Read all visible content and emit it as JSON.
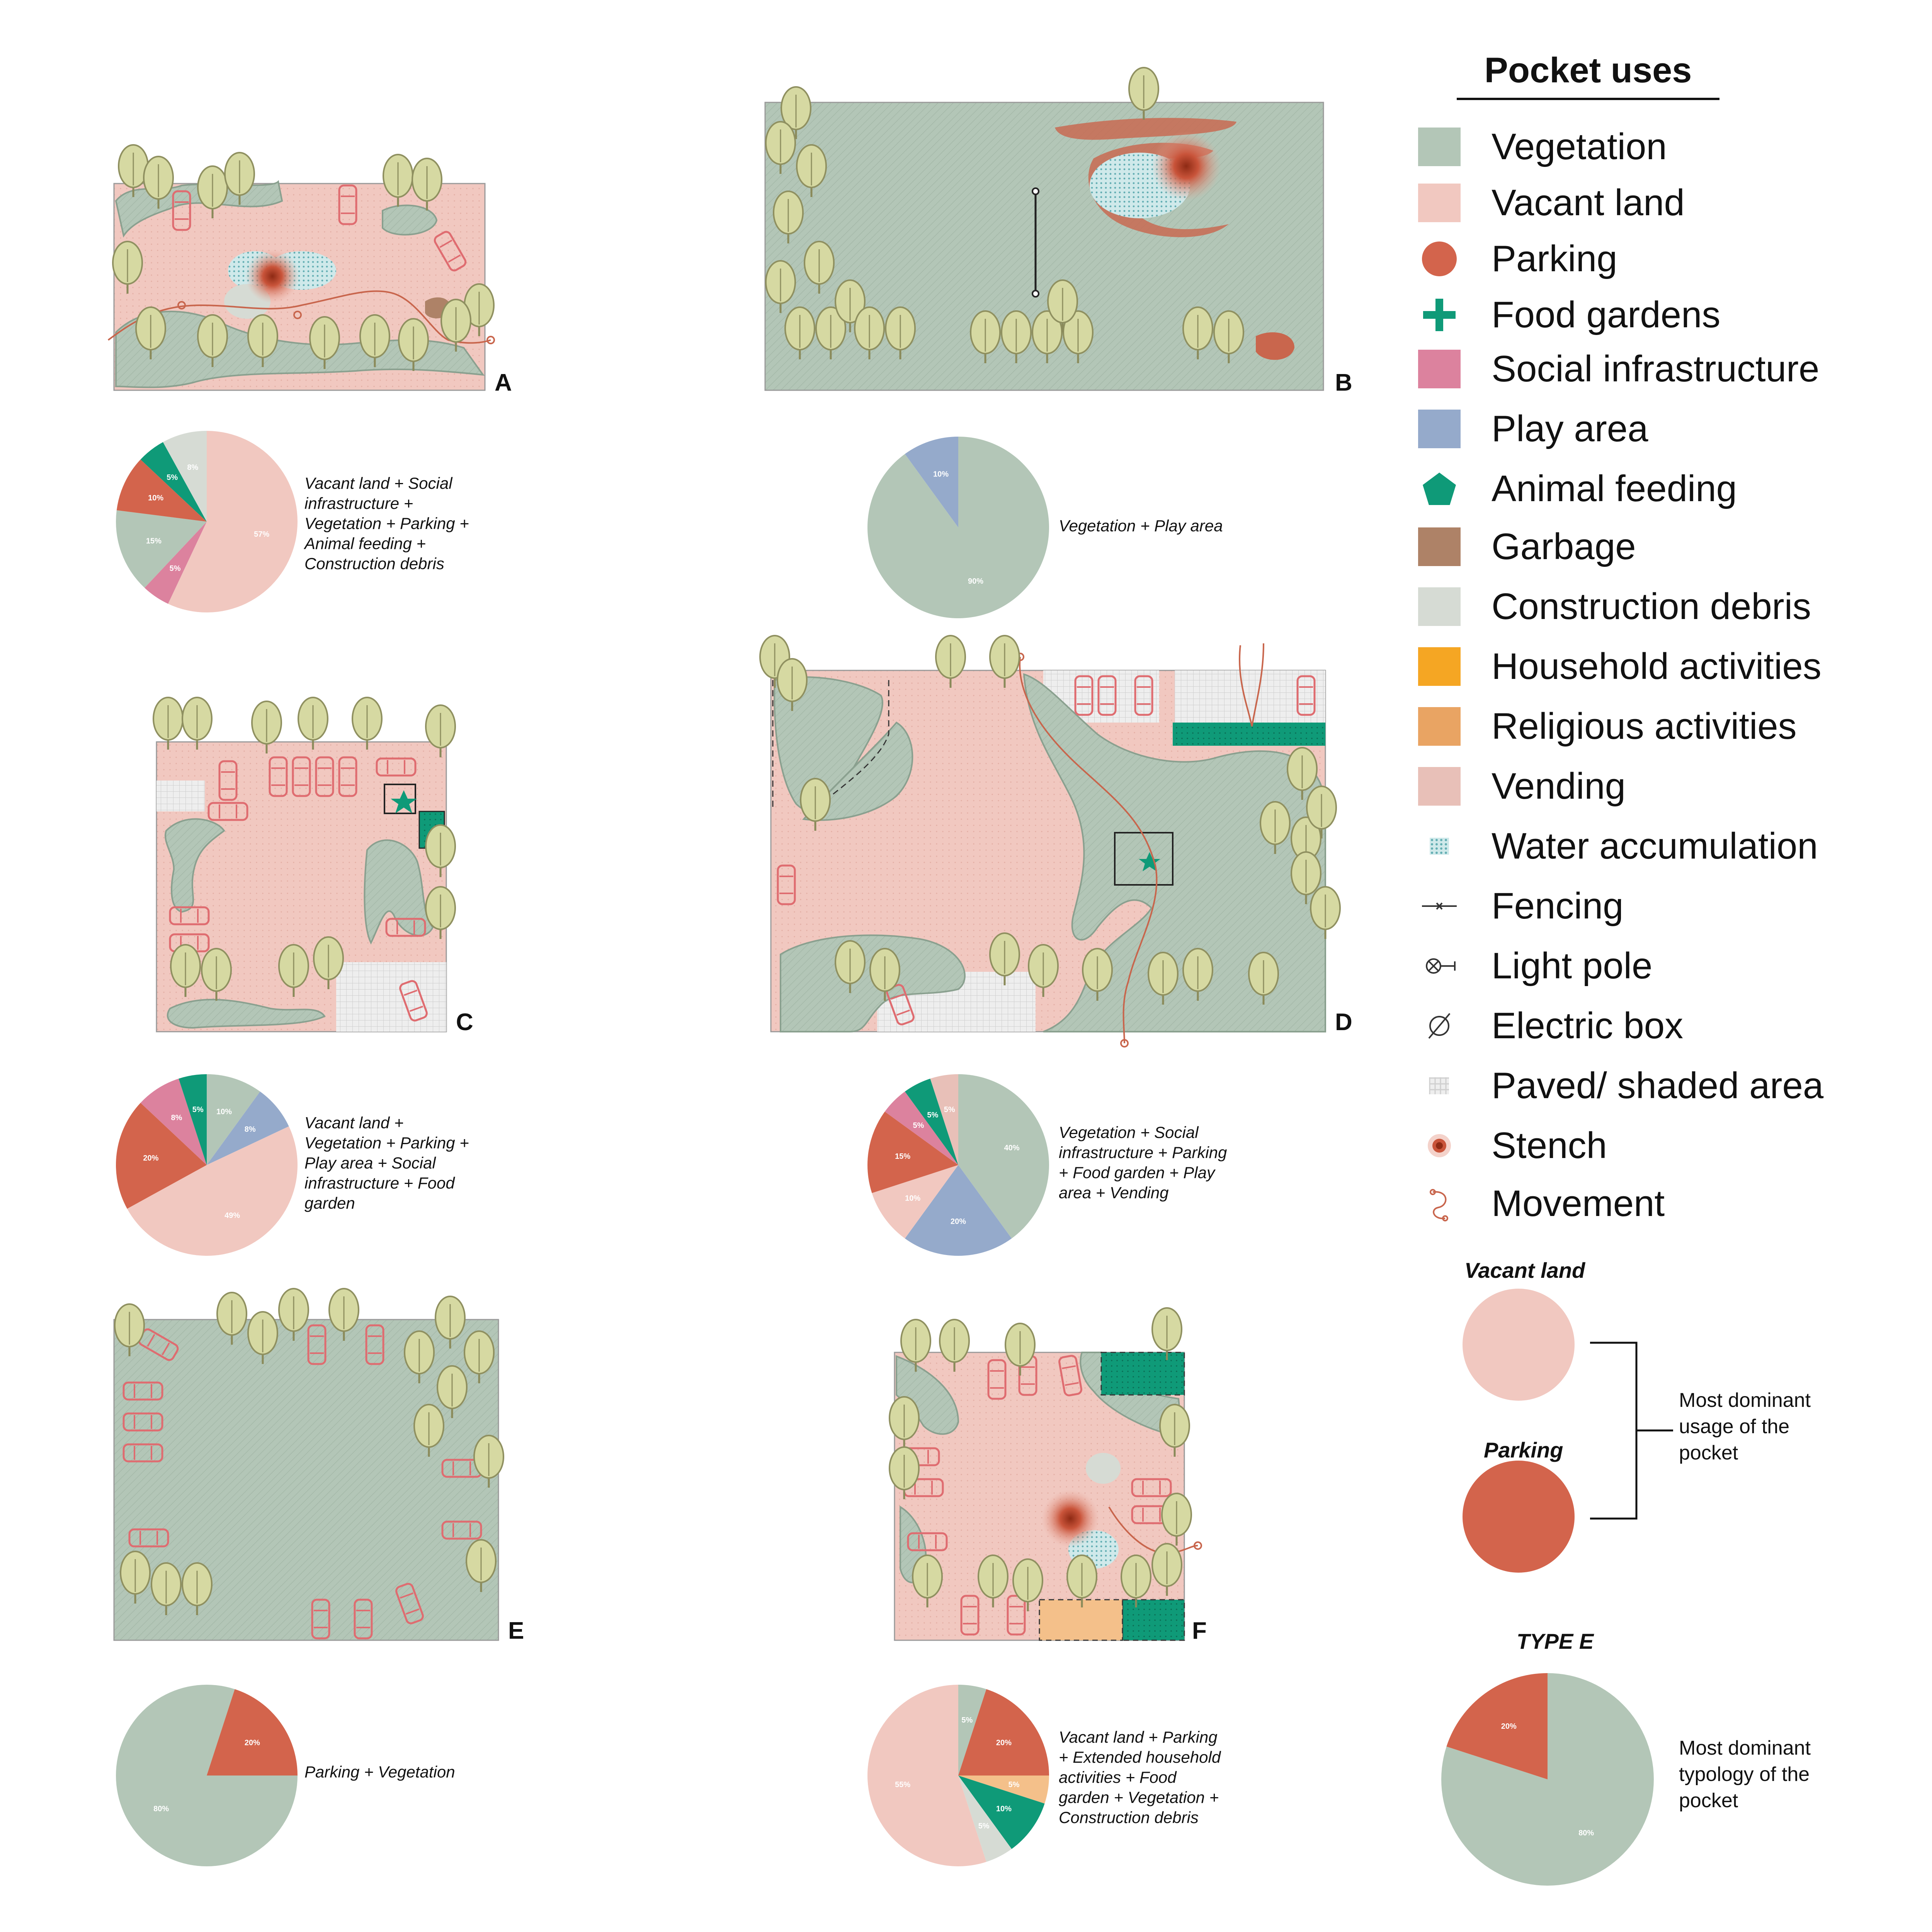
{
  "legend": {
    "title": "Pocket uses",
    "items": [
      {
        "label": "Vegetation",
        "icon": "vegetation-swatch",
        "color": "#b3c6b7"
      },
      {
        "label": "Vacant land",
        "icon": "vacant-land-swatch",
        "color": "#f1c8c0"
      },
      {
        "label": "Parking",
        "icon": "parking-dot",
        "color": "#d3644c"
      },
      {
        "label": "Food gardens",
        "icon": "plus-icon",
        "color": "#0f9a78"
      },
      {
        "label": "Social infrastructure",
        "icon": "social-infrastructure-swatch",
        "color": "#dc829e"
      },
      {
        "label": "Play area",
        "icon": "play-area-swatch",
        "color": "#95aacb"
      },
      {
        "label": "Animal feeding",
        "icon": "pentagon-icon",
        "color": "#0f9a78"
      },
      {
        "label": "Garbage",
        "icon": "garbage-swatch",
        "color": "#ae8267"
      },
      {
        "label": "Construction debris",
        "icon": "construction-debris-swatch",
        "color": "#d6dbd4"
      },
      {
        "label": "Household activities",
        "icon": "household-activities-swatch",
        "color": "#f5a623"
      },
      {
        "label": "Religious activities",
        "icon": "religious-activities-swatch",
        "color": "#e9a463"
      },
      {
        "label": "Vending",
        "icon": "vending-swatch",
        "color": "#e8c0b8"
      },
      {
        "label": "Water accumulation",
        "icon": "water-dots-icon",
        "color": "#8fcfd2"
      },
      {
        "label": "Fencing",
        "icon": "fence-icon",
        "color": "#333333"
      },
      {
        "label": "Light pole",
        "icon": "light-pole-icon",
        "color": "#333333"
      },
      {
        "label": "Electric box",
        "icon": "electric-box-icon",
        "color": "#333333"
      },
      {
        "label": "Paved/ shaded area",
        "icon": "paved-grid-icon",
        "color": "#dedede"
      },
      {
        "label": "Stench",
        "icon": "stench-icon",
        "color": "#b04a30"
      },
      {
        "label": "Movement",
        "icon": "movement-icon",
        "color": "#c8654c"
      }
    ],
    "dominant": {
      "vacant_label": "Vacant land",
      "parking_label": "Parking",
      "note": [
        "Most dominant",
        "usage of the",
        "pocket"
      ],
      "vacant_color": "#f1c8c0",
      "parking_color": "#d3644c"
    },
    "type_key": {
      "label": "TYPE E",
      "note": [
        "Most dominant",
        "typology of the",
        "pocket"
      ]
    }
  },
  "panels": [
    {
      "letter": "A"
    },
    {
      "letter": "B"
    },
    {
      "letter": "C"
    },
    {
      "letter": "D"
    },
    {
      "letter": "E"
    },
    {
      "letter": "F"
    }
  ],
  "chart_data": [
    {
      "type": "pie",
      "panel": "A",
      "caption": [
        "Vacant land + Social",
        "infrastructure +",
        "Vegetation + Parking +",
        "Animal feeding +",
        "Construction debris"
      ],
      "slices": [
        {
          "category": "Vacant land",
          "value": 57,
          "label": "57%",
          "color": "#f1c8c0"
        },
        {
          "category": "Social infrastructure",
          "value": 5,
          "label": "5%",
          "color": "#dc829e"
        },
        {
          "category": "Vegetation",
          "value": 15,
          "label": "15%",
          "color": "#b3c6b7"
        },
        {
          "category": "Parking",
          "value": 10,
          "label": "10%",
          "color": "#d3644c"
        },
        {
          "category": "Animal feeding",
          "value": 5,
          "label": "5%",
          "color": "#0f9a78"
        },
        {
          "category": "Construction debris",
          "value": 8,
          "label": "8%",
          "color": "#d6dbd4"
        }
      ]
    },
    {
      "type": "pie",
      "panel": "B",
      "caption": [
        "Vegetation + Play area"
      ],
      "slices": [
        {
          "category": "Vegetation",
          "value": 90,
          "label": "90%",
          "color": "#b3c6b7"
        },
        {
          "category": "Play area",
          "value": 10,
          "label": "10%",
          "color": "#95aacb"
        }
      ]
    },
    {
      "type": "pie",
      "panel": "C",
      "caption": [
        "Vacant land +",
        "Vegetation + Parking +",
        "Play area + Social",
        "infrastructure + Food",
        "garden"
      ],
      "slices": [
        {
          "category": "Vegetation",
          "value": 10,
          "label": "10%",
          "color": "#b3c6b7"
        },
        {
          "category": "Play area",
          "value": 8,
          "label": "8%",
          "color": "#95aacb"
        },
        {
          "category": "Vacant land",
          "value": 49,
          "label": "49%",
          "color": "#f1c8c0"
        },
        {
          "category": "Parking",
          "value": 20,
          "label": "20%",
          "color": "#d3644c"
        },
        {
          "category": "Social infrastructure",
          "value": 8,
          "label": "8%",
          "color": "#dc829e"
        },
        {
          "category": "Food garden",
          "value": 5,
          "label": "5%",
          "color": "#0f9a78"
        }
      ]
    },
    {
      "type": "pie",
      "panel": "D",
      "caption": [
        "Vegetation + Social",
        "infrastructure + Parking",
        "+ Food garden + Play",
        "area + Vending"
      ],
      "slices": [
        {
          "category": "Vegetation",
          "value": 40,
          "label": "40%",
          "color": "#b3c6b7"
        },
        {
          "category": "Play area",
          "value": 20,
          "label": "20%",
          "color": "#95aacb"
        },
        {
          "category": "Vacant land",
          "value": 10,
          "label": "10%",
          "color": "#f1c8c0"
        },
        {
          "category": "Parking",
          "value": 15,
          "label": "15%",
          "color": "#d3644c"
        },
        {
          "category": "Social infrastructure",
          "value": 5,
          "label": "5%",
          "color": "#dc829e"
        },
        {
          "category": "Food garden",
          "value": 5,
          "label": "5%",
          "color": "#0f9a78"
        },
        {
          "category": "Vending",
          "value": 5,
          "label": "5%",
          "color": "#e8c0b8"
        }
      ]
    },
    {
      "type": "pie",
      "panel": "E",
      "caption": [
        "Parking + Vegetation"
      ],
      "slices": [
        {
          "category": "Vegetation",
          "value": 80,
          "label": "80%",
          "color": "#b3c6b7"
        },
        {
          "category": "Parking",
          "value": 20,
          "label": "20%",
          "color": "#d3644c"
        }
      ]
    },
    {
      "type": "pie",
      "panel": "F",
      "caption": [
        "Vacant land + Parking",
        "+ Extended household",
        "activities + Food",
        "garden + Vegetation +",
        "Construction debris"
      ],
      "slices": [
        {
          "category": "Vegetation",
          "value": 5,
          "label": "5%",
          "color": "#b3c6b7"
        },
        {
          "category": "Parking",
          "value": 20,
          "label": "20%",
          "color": "#d3644c"
        },
        {
          "category": "Extended household activities",
          "value": 5,
          "label": "5%",
          "color": "#f4c08a"
        },
        {
          "category": "Food garden",
          "value": 10,
          "label": "10%",
          "color": "#0f9a78"
        },
        {
          "category": "Construction debris",
          "value": 5,
          "label": "5%",
          "color": "#d6dbd4"
        },
        {
          "category": "Vacant land",
          "value": 55,
          "label": "55%",
          "color": "#f1c8c0"
        }
      ]
    },
    {
      "type": "pie",
      "panel": "TYPE E",
      "slices": [
        {
          "category": "Vegetation",
          "value": 80,
          "label": "80%",
          "color": "#b3c6b7"
        },
        {
          "category": "Parking",
          "value": 20,
          "label": "20%",
          "color": "#d3644c"
        }
      ]
    }
  ]
}
